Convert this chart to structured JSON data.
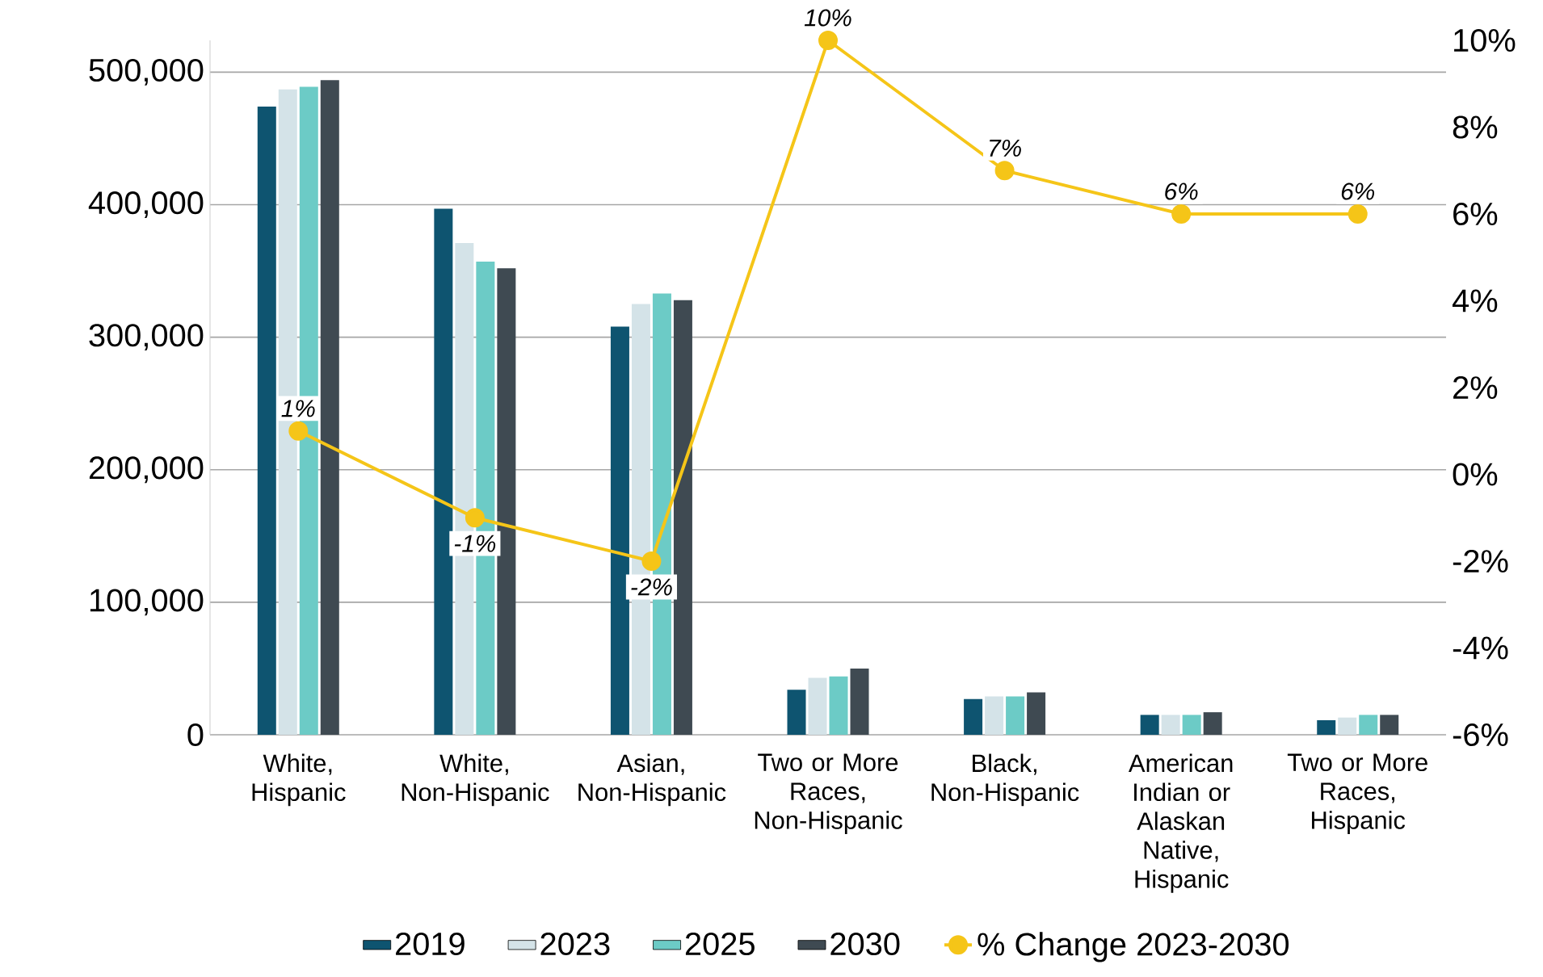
{
  "chart_data": {
    "type": "bar",
    "categories": [
      "White, Hispanic",
      "White, Non-Hispanic",
      "Asian, Non-Hispanic",
      "Two or More Races, Non-Hispanic",
      "Black, Non-Hispanic",
      "American Indian or Alaskan Native, Hispanic",
      "Two or More Races, Hispanic"
    ],
    "series": [
      {
        "name": "2019",
        "color": "#0e5470",
        "values": [
          474000,
          397000,
          308000,
          34000,
          27000,
          15000,
          11000
        ]
      },
      {
        "name": "2023",
        "color": "#d4e3e8",
        "values": [
          487000,
          371000,
          325000,
          43000,
          29000,
          15000,
          13000
        ]
      },
      {
        "name": "2025",
        "color": "#6ccbc6",
        "values": [
          489000,
          357000,
          333000,
          44000,
          29000,
          15000,
          15000
        ]
      },
      {
        "name": "2030",
        "color": "#3f4a52",
        "values": [
          494000,
          352000,
          328000,
          50000,
          32000,
          17000,
          15000
        ]
      },
      {
        "name": "% Change 2023-2030",
        "type": "line",
        "axis": "y2",
        "color": "#f5c518",
        "values": [
          1,
          -1,
          -2,
          10,
          7,
          6,
          6
        ],
        "value_labels": [
          "1%",
          "-1%",
          "-2%",
          "10%",
          "7%",
          "6%",
          "6%"
        ]
      }
    ],
    "ylim": [
      0,
      524000
    ],
    "yticks": [
      {
        "value": 0,
        "label": "0"
      },
      {
        "value": 100000,
        "label": "100,000"
      },
      {
        "value": 200000,
        "label": "200,000"
      },
      {
        "value": 300000,
        "label": "300,000"
      },
      {
        "value": 400000,
        "label": "400,000"
      },
      {
        "value": 500000,
        "label": "500,000"
      }
    ],
    "y2lim": [
      -6,
      10
    ],
    "y2ticks": [
      {
        "value": -6,
        "label": "-6%"
      },
      {
        "value": -4,
        "label": "-4%"
      },
      {
        "value": -2,
        "label": "-2%"
      },
      {
        "value": 0,
        "label": "0%"
      },
      {
        "value": 2,
        "label": "2%"
      },
      {
        "value": 4,
        "label": "4%"
      },
      {
        "value": 6,
        "label": "6%"
      },
      {
        "value": 8,
        "label": "8%"
      },
      {
        "value": 10,
        "label": "10%"
      }
    ],
    "grid": "y",
    "legend": "bottom",
    "marker": "circle"
  }
}
